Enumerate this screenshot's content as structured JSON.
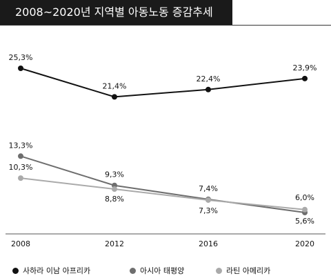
{
  "chart_data": {
    "type": "line",
    "title": "2008~2020년  지역별 아동노동 증감추세",
    "x": [
      "2008",
      "2012",
      "2016",
      "2020"
    ],
    "series": [
      {
        "name": "사하라 이남 아프리카",
        "values": [
          25.3,
          21.4,
          22.4,
          23.9
        ],
        "labels": [
          "25,3%",
          "21,4%",
          "22,4%",
          "23,9%"
        ],
        "color": "#111111"
      },
      {
        "name": "아시아 태평양",
        "values": [
          13.3,
          9.3,
          7.4,
          5.6
        ],
        "labels": [
          "13,3%",
          "9,3%",
          "7,4%",
          "5,6%"
        ],
        "color": "#6e6e6e"
      },
      {
        "name": "라틴 아메리카",
        "values": [
          10.3,
          8.8,
          7.3,
          6.0
        ],
        "labels": [
          "10,3%",
          "8,8%",
          "7,3%",
          "6,0%"
        ],
        "color": "#aaaaaa"
      }
    ],
    "ylim": [
      3,
      29
    ],
    "grid": false,
    "legend": "bottom"
  }
}
